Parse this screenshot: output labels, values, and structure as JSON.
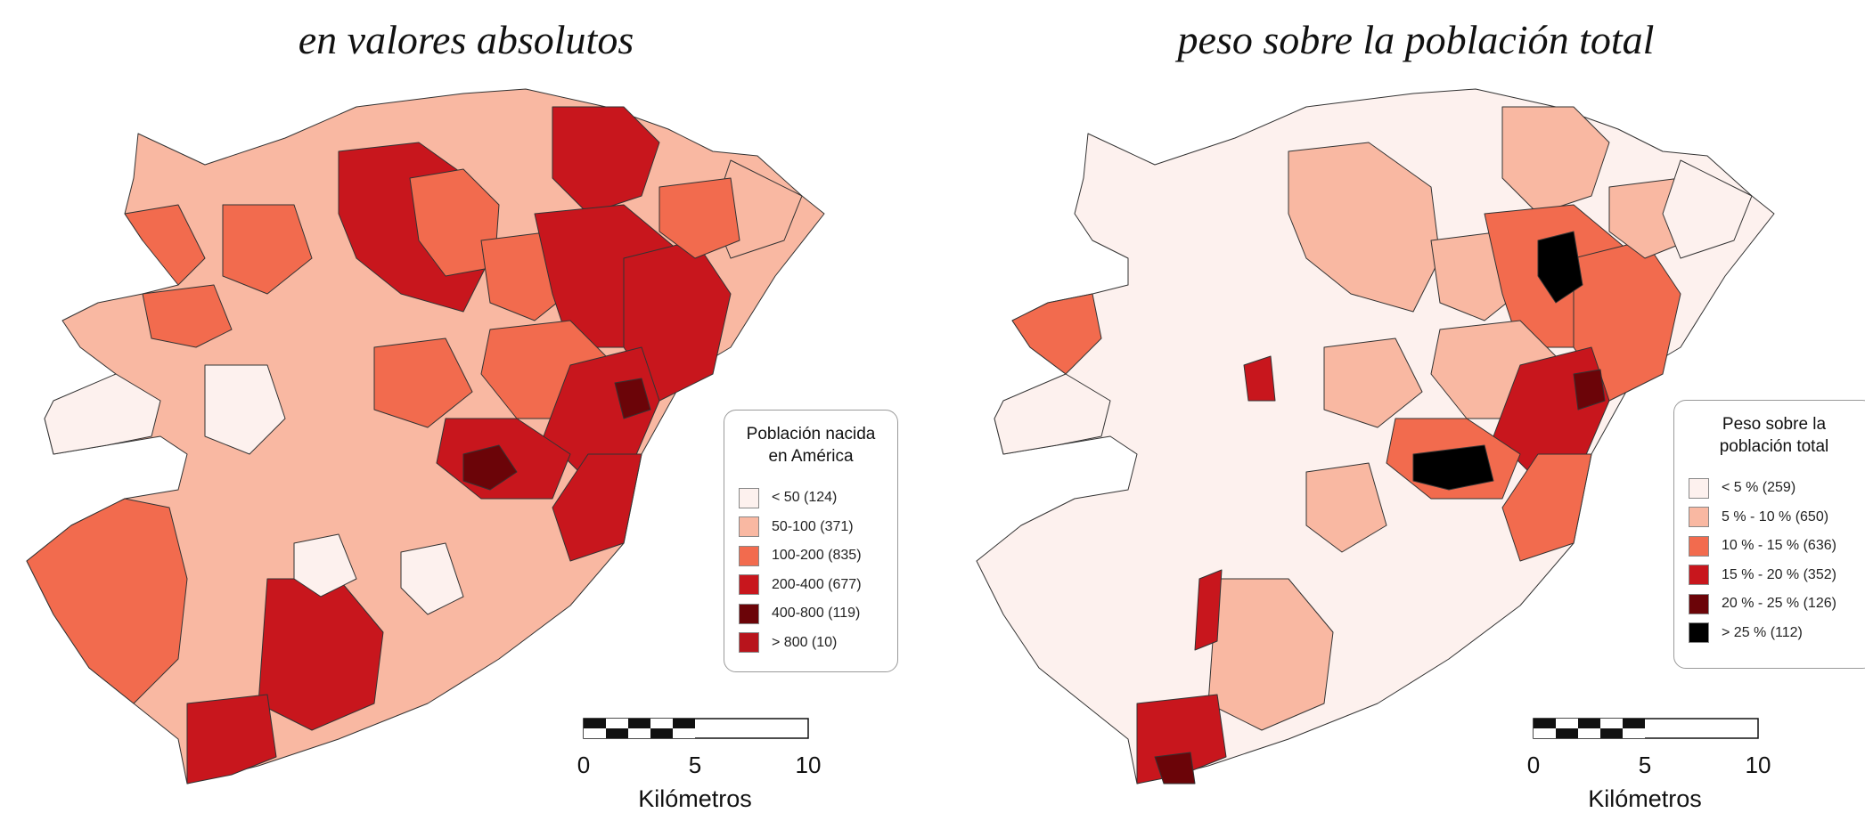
{
  "panels": [
    {
      "title": "en valores absolutos",
      "legend": {
        "title_line1": "Población nacida",
        "title_line2": "en América",
        "items": [
          {
            "label": "< 50  (124)",
            "color": "#fdf1ee"
          },
          {
            "label": "50-100 (371)",
            "color": "#f9b8a2"
          },
          {
            "label": "100-200 (835)",
            "color": "#f26b4e"
          },
          {
            "label": "200-400 (677)",
            "color": "#c8161d"
          },
          {
            "label": "400-800 (119)",
            "color": "#6b0408"
          },
          {
            "label": "> 800 (10)",
            "color": "#b8141c"
          }
        ]
      },
      "scale": {
        "ticks": [
          "0",
          "5",
          "10"
        ],
        "unit": "Kilómetros"
      }
    },
    {
      "title": "peso sobre la población total",
      "legend": {
        "title_line1": "Peso sobre la",
        "title_line2": "población total",
        "items": [
          {
            "label": "< 5 % (259)",
            "color": "#fdf1ee"
          },
          {
            "label": "5 % - 10 % (650)",
            "color": "#f9b8a2"
          },
          {
            "label": "10 % - 15 % (636)",
            "color": "#f26b4e"
          },
          {
            "label": "15 % - 20 % (352)",
            "color": "#c8161d"
          },
          {
            "label": "20 % - 25 % (126)",
            "color": "#6b0408"
          },
          {
            "label": "> 25 % (112)",
            "color": "#000000"
          }
        ]
      },
      "scale": {
        "ticks": [
          "0",
          "5",
          "10"
        ],
        "unit": "Kilómetros"
      }
    }
  ]
}
